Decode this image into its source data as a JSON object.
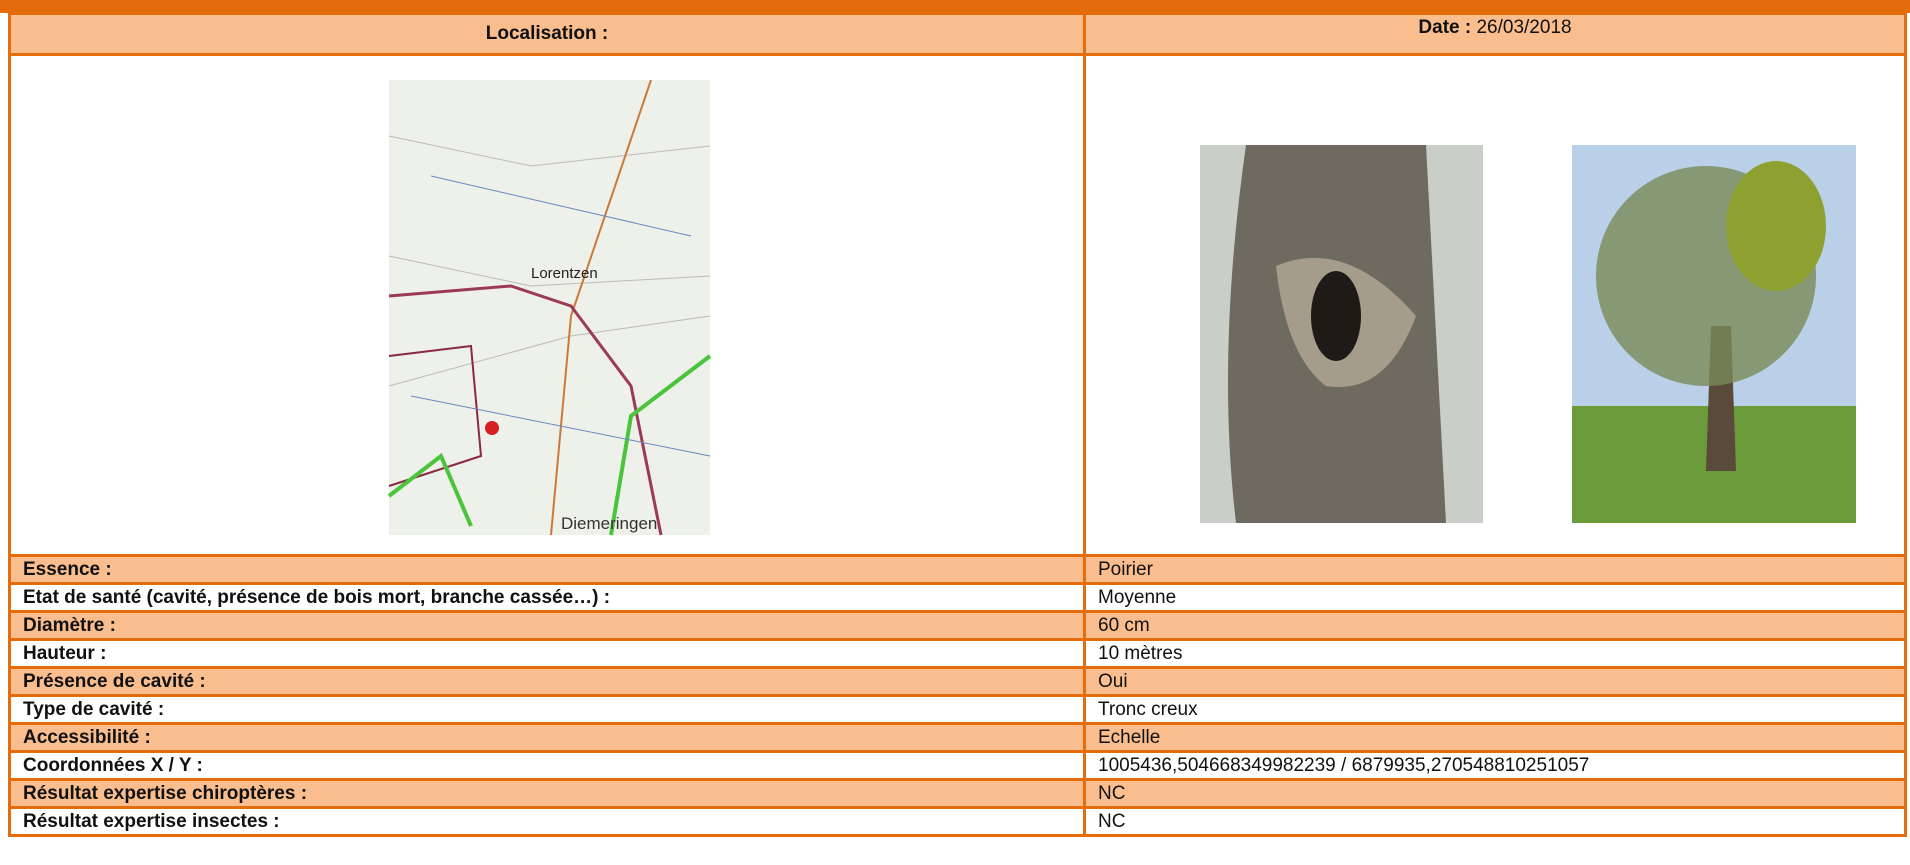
{
  "header": {
    "location_label": "Localisation :",
    "date_label": "Date :",
    "date": "26/03/2018"
  },
  "map": {
    "labels": [
      "Lorentzen",
      "Diemeringen"
    ]
  },
  "rows": [
    {
      "label": "Essence :",
      "value": "Poirier"
    },
    {
      "label": "Etat de santé (cavité, présence de bois mort, branche cassée…) :",
      "value": "Moyenne"
    },
    {
      "label": "Diamètre :",
      "value": "60 cm"
    },
    {
      "label": "Hauteur :",
      "value": "10 mètres"
    },
    {
      "label": "Présence de cavité :",
      "value": "Oui"
    },
    {
      "label": "Type de cavité :",
      "value": "Tronc creux"
    },
    {
      "label": "Accessibilité :",
      "value": "Echelle"
    },
    {
      "label": "Coordonnées X / Y :",
      "value": "1005436,504668349982239 / 6879935,270548810251057"
    },
    {
      "label": "Résultat expertise chiroptères :",
      "value": "NC"
    },
    {
      "label": "Résultat expertise insectes :",
      "value": "NC"
    }
  ]
}
